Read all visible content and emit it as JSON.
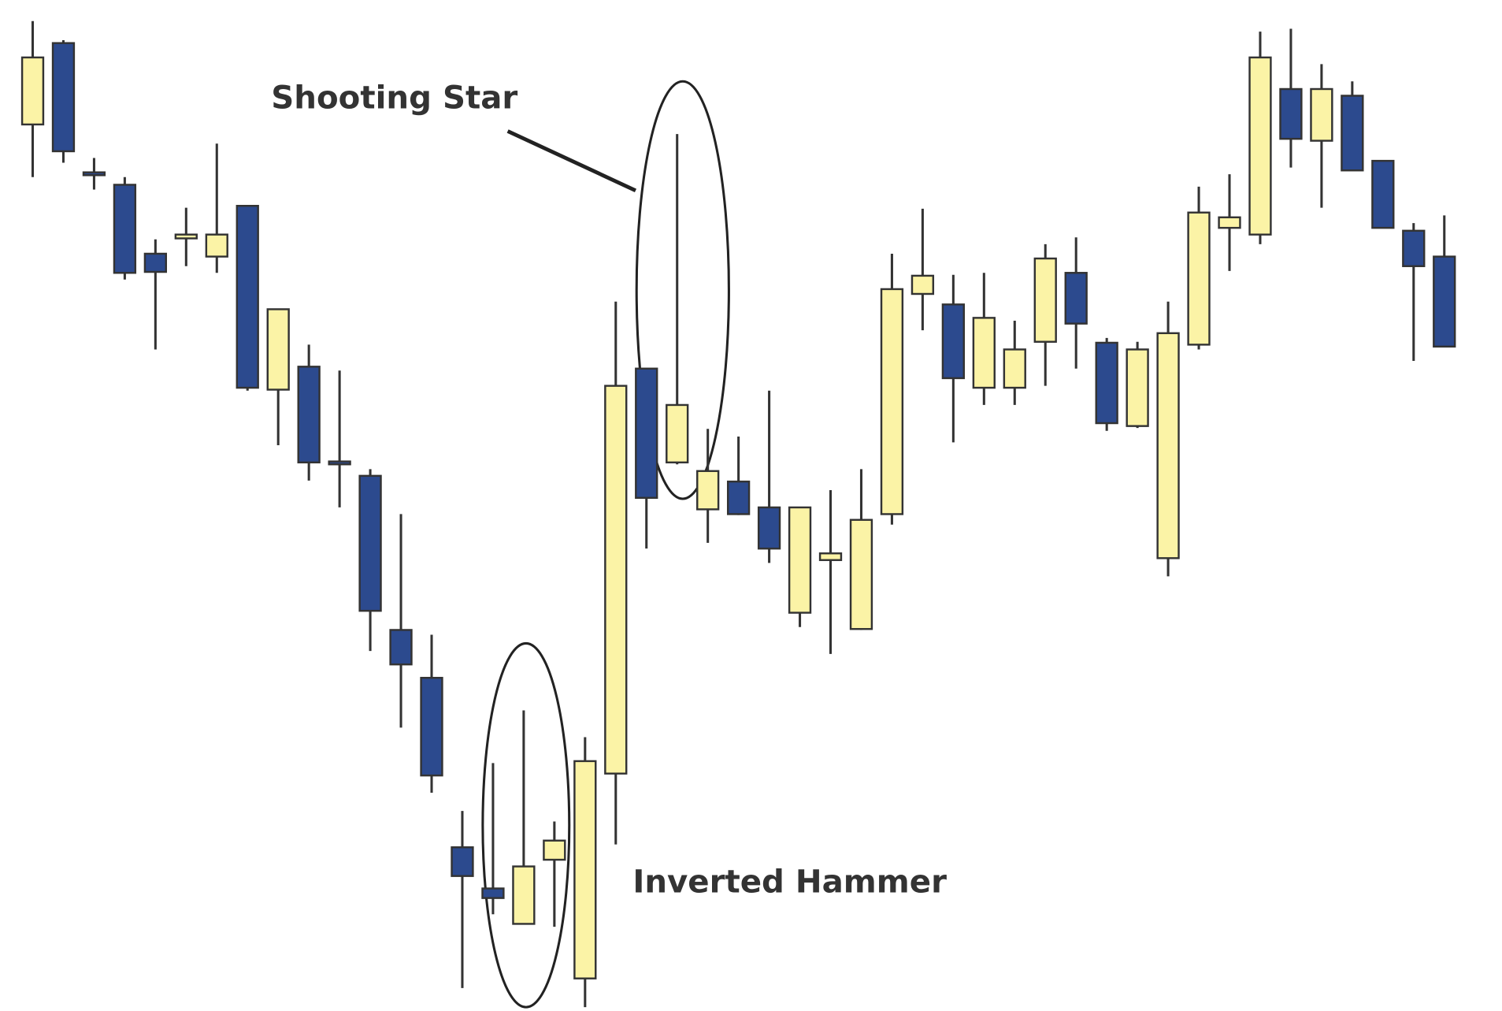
{
  "chart_data": {
    "type": "candlestick",
    "ylim": [
      0,
      105.6
    ],
    "up_color": "#fbf3a6",
    "down_color": "#2c4a8e",
    "open": [
      92.6,
      101.1,
      87.6,
      86.3,
      79.1,
      80.7,
      78.8,
      84.1,
      64.9,
      67.3,
      57.4,
      55.9,
      39.8,
      34.8,
      17.1,
      12.8,
      9.1,
      15.8,
      3.4,
      24.8,
      67.1,
      57.3,
      52.4,
      55.3,
      52.6,
      41.6,
      47.1,
      39.9,
      51.9,
      74.9,
      73.8,
      65.1,
      65.1,
      69.9,
      77.1,
      69.8,
      61.1,
      47.3,
      69.6,
      81.8,
      81.1,
      96.3,
      90.9,
      95.6,
      88.8,
      81.5,
      78.8
    ],
    "high": [
      103.4,
      101.4,
      89.1,
      87.1,
      80.6,
      83.9,
      90.6,
      84.1,
      73.3,
      69.6,
      66.9,
      56.6,
      51.9,
      39.3,
      20.9,
      25.9,
      31.4,
      19.8,
      28.6,
      74.1,
      67.1,
      91.6,
      60.8,
      60.0,
      64.8,
      52.6,
      54.4,
      56.6,
      79.1,
      83.8,
      76.9,
      77.1,
      72.1,
      80.1,
      80.8,
      70.3,
      69.9,
      74.1,
      86.1,
      87.4,
      102.3,
      102.6,
      98.9,
      97.1,
      88.8,
      82.3,
      83.1
    ],
    "low": [
      87.1,
      88.6,
      85.8,
      76.4,
      69.1,
      77.8,
      77.1,
      64.8,
      59.1,
      55.4,
      52.6,
      37.6,
      29.6,
      22.8,
      2.4,
      10.1,
      9.1,
      8.8,
      0.4,
      17.4,
      48.3,
      57.1,
      48.9,
      51.8,
      46.8,
      40.1,
      37.3,
      39.8,
      50.8,
      71.1,
      59.4,
      63.3,
      63.3,
      65.3,
      67.1,
      60.6,
      60.9,
      45.4,
      69.1,
      77.3,
      80.1,
      88.1,
      83.9,
      87.8,
      81.8,
      67.9,
      69.4
    ],
    "close": [
      99.6,
      89.8,
      87.3,
      77.1,
      77.2,
      81.1,
      81.1,
      65.1,
      73.3,
      57.3,
      57.2,
      41.8,
      36.2,
      24.6,
      14.1,
      11.8,
      15.1,
      17.8,
      26.1,
      65.3,
      53.6,
      63.3,
      56.4,
      51.9,
      48.3,
      52.6,
      47.8,
      51.3,
      75.4,
      76.8,
      66.1,
      72.4,
      69.1,
      78.6,
      71.8,
      61.4,
      69.1,
      70.8,
      83.4,
      82.9,
      99.6,
      91.1,
      96.3,
      87.8,
      81.8,
      77.8,
      69.4
    ],
    "annotations": [
      {
        "text": "Shooting Star"
      },
      {
        "text": "Inverted Hammer"
      }
    ]
  }
}
